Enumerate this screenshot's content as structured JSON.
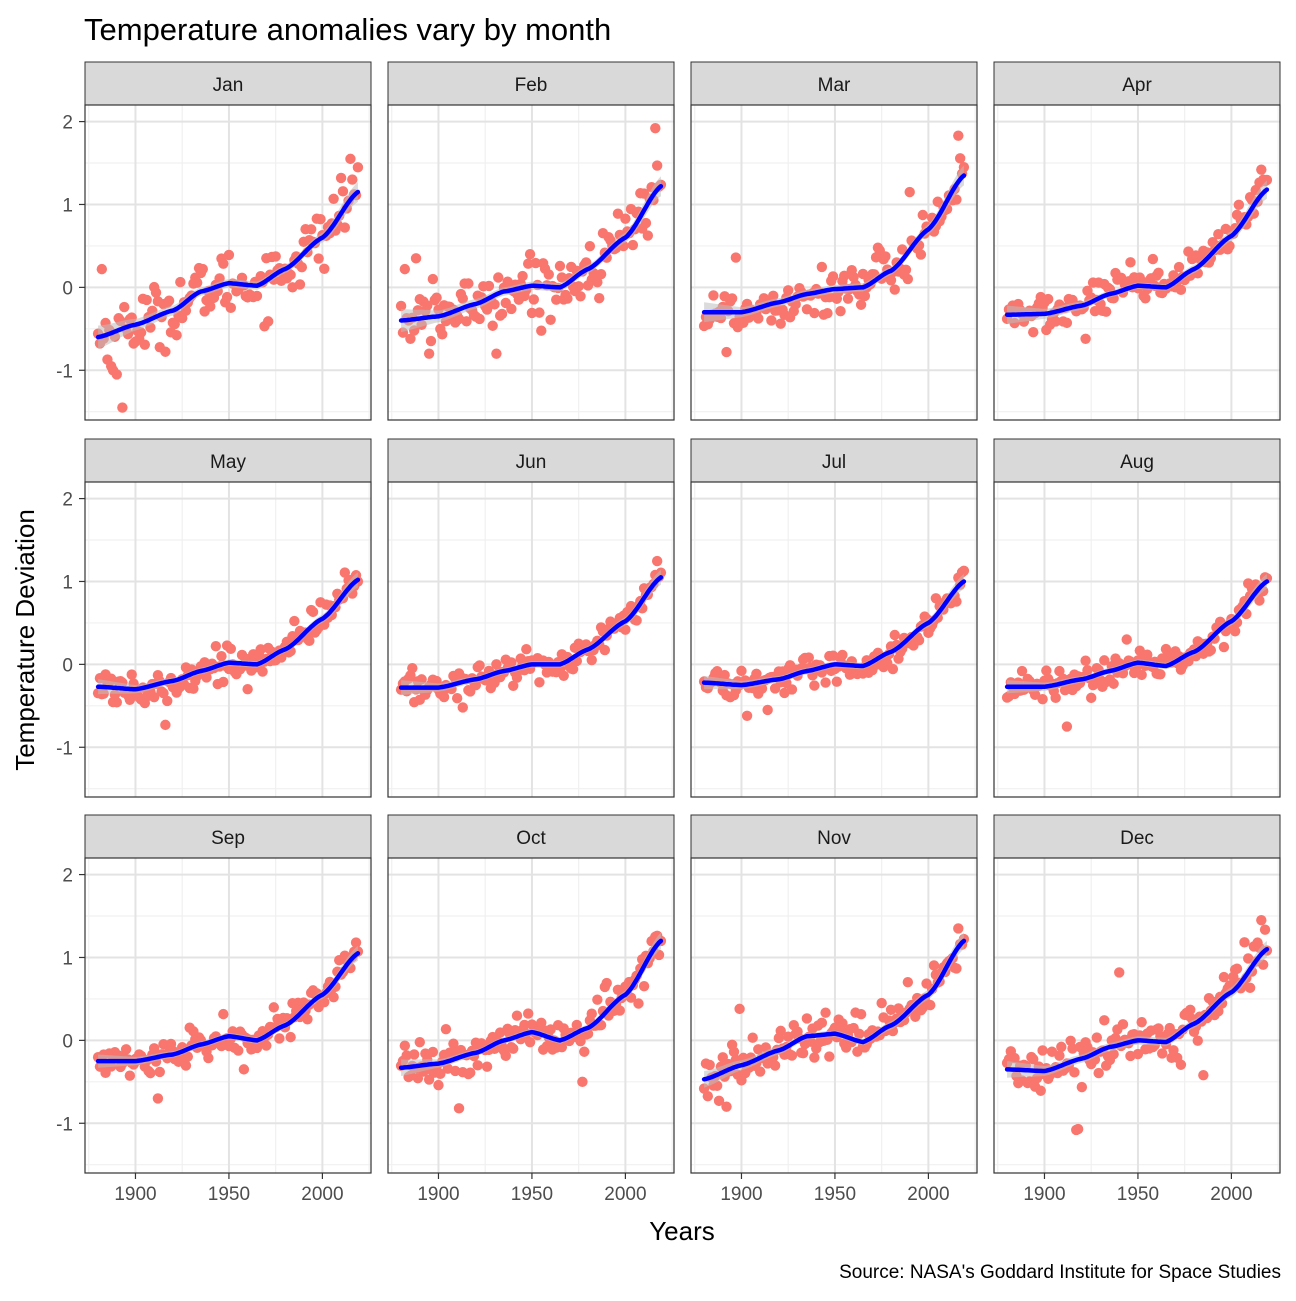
{
  "chart_data": {
    "type": "scatter",
    "title": "Temperature anomalies vary by month",
    "xlabel": "Years",
    "ylabel": "Temperature Deviation",
    "caption": "Source: NASA's Goddard Institute for Space Studies",
    "xlim": [
      1873,
      2026
    ],
    "ylim": [
      -1.6,
      2.2
    ],
    "x_ticks": [
      1900,
      1950,
      2000
    ],
    "y_ticks": [
      -1,
      0,
      1,
      2
    ],
    "grid": true,
    "point_color": "#F8766D",
    "smooth_color": "#0000FF",
    "band_color": "#BEBEBE",
    "strip_fill": "#D9D9D9",
    "series": [
      {
        "name": "Jan",
        "smooth": [
          [
            1880,
            -0.6
          ],
          [
            1900,
            -0.45
          ],
          [
            1920,
            -0.28
          ],
          [
            1935,
            -0.05
          ],
          [
            1950,
            0.05
          ],
          [
            1965,
            0.02
          ],
          [
            1980,
            0.22
          ],
          [
            2000,
            0.6
          ],
          [
            2019,
            1.15
          ]
        ],
        "band": [
          0.14,
          0.07,
          0.06,
          0.05,
          0.05,
          0.05,
          0.05,
          0.06,
          0.12
        ],
        "outliers": [
          [
            1882,
            0.22
          ],
          [
            1888,
            -1.0
          ],
          [
            1890,
            -1.05
          ],
          [
            1893,
            -1.45
          ],
          [
            2015,
            1.55
          ],
          [
            2016,
            1.3
          ],
          [
            2010,
            1.32
          ]
        ]
      },
      {
        "name": "Feb",
        "smooth": [
          [
            1880,
            -0.4
          ],
          [
            1900,
            -0.35
          ],
          [
            1920,
            -0.2
          ],
          [
            1935,
            -0.05
          ],
          [
            1950,
            0.02
          ],
          [
            1965,
            0.0
          ],
          [
            1980,
            0.22
          ],
          [
            2000,
            0.6
          ],
          [
            2019,
            1.22
          ]
        ],
        "band": [
          0.14,
          0.07,
          0.06,
          0.05,
          0.05,
          0.05,
          0.05,
          0.06,
          0.12
        ],
        "outliers": [
          [
            1882,
            0.22
          ],
          [
            1888,
            0.35
          ],
          [
            1895,
            -0.8
          ],
          [
            1931,
            -0.8
          ],
          [
            2016,
            1.92
          ],
          [
            2017,
            1.47
          ]
        ]
      },
      {
        "name": "Mar",
        "smooth": [
          [
            1880,
            -0.3
          ],
          [
            1900,
            -0.3
          ],
          [
            1920,
            -0.18
          ],
          [
            1935,
            -0.08
          ],
          [
            1950,
            -0.02
          ],
          [
            1965,
            0.0
          ],
          [
            1980,
            0.2
          ],
          [
            2000,
            0.7
          ],
          [
            2019,
            1.35
          ]
        ],
        "band": [
          0.12,
          0.06,
          0.05,
          0.05,
          0.05,
          0.05,
          0.05,
          0.06,
          0.12
        ],
        "outliers": [
          [
            1892,
            -0.78
          ],
          [
            1897,
            0.36
          ],
          [
            1990,
            1.15
          ],
          [
            2016,
            1.83
          ],
          [
            2019,
            1.45
          ]
        ]
      },
      {
        "name": "Apr",
        "smooth": [
          [
            1880,
            -0.33
          ],
          [
            1900,
            -0.32
          ],
          [
            1920,
            -0.22
          ],
          [
            1935,
            -0.08
          ],
          [
            1950,
            0.02
          ],
          [
            1965,
            0.0
          ],
          [
            1980,
            0.22
          ],
          [
            2000,
            0.62
          ],
          [
            2019,
            1.18
          ]
        ],
        "band": [
          0.11,
          0.06,
          0.05,
          0.04,
          0.04,
          0.04,
          0.05,
          0.06,
          0.11
        ],
        "outliers": [
          [
            1880,
            -0.38
          ],
          [
            1922,
            -0.62
          ],
          [
            2016,
            1.42
          ]
        ]
      },
      {
        "name": "May",
        "smooth": [
          [
            1880,
            -0.27
          ],
          [
            1900,
            -0.3
          ],
          [
            1920,
            -0.2
          ],
          [
            1935,
            -0.08
          ],
          [
            1950,
            0.02
          ],
          [
            1965,
            0.0
          ],
          [
            1980,
            0.18
          ],
          [
            2000,
            0.55
          ],
          [
            2019,
            1.02
          ]
        ],
        "band": [
          0.09,
          0.05,
          0.04,
          0.04,
          0.04,
          0.04,
          0.04,
          0.05,
          0.09
        ],
        "outliers": [
          [
            1916,
            -0.73
          ],
          [
            1960,
            -0.3
          ]
        ]
      },
      {
        "name": "Jun",
        "smooth": [
          [
            1880,
            -0.28
          ],
          [
            1900,
            -0.28
          ],
          [
            1920,
            -0.18
          ],
          [
            1935,
            -0.08
          ],
          [
            1950,
            0.0
          ],
          [
            1965,
            0.0
          ],
          [
            1980,
            0.18
          ],
          [
            2000,
            0.52
          ],
          [
            2019,
            1.05
          ]
        ],
        "band": [
          0.09,
          0.05,
          0.04,
          0.04,
          0.04,
          0.04,
          0.04,
          0.05,
          0.09
        ],
        "outliers": [
          [
            1913,
            -0.52
          ]
        ]
      },
      {
        "name": "Jul",
        "smooth": [
          [
            1880,
            -0.22
          ],
          [
            1900,
            -0.25
          ],
          [
            1920,
            -0.18
          ],
          [
            1935,
            -0.08
          ],
          [
            1950,
            0.0
          ],
          [
            1965,
            -0.02
          ],
          [
            1980,
            0.15
          ],
          [
            2000,
            0.5
          ],
          [
            2019,
            1.0
          ]
        ],
        "band": [
          0.08,
          0.05,
          0.04,
          0.04,
          0.04,
          0.04,
          0.04,
          0.05,
          0.09
        ],
        "outliers": [
          [
            1903,
            -0.62
          ],
          [
            1914,
            -0.55
          ]
        ]
      },
      {
        "name": "Aug",
        "smooth": [
          [
            1880,
            -0.27
          ],
          [
            1900,
            -0.27
          ],
          [
            1920,
            -0.18
          ],
          [
            1935,
            -0.08
          ],
          [
            1950,
            0.02
          ],
          [
            1965,
            -0.02
          ],
          [
            1980,
            0.15
          ],
          [
            2000,
            0.52
          ],
          [
            2019,
            1.0
          ]
        ],
        "band": [
          0.08,
          0.05,
          0.04,
          0.04,
          0.04,
          0.04,
          0.04,
          0.05,
          0.09
        ],
        "outliers": [
          [
            1912,
            -0.75
          ],
          [
            1944,
            0.3
          ]
        ]
      },
      {
        "name": "Sep",
        "smooth": [
          [
            1880,
            -0.25
          ],
          [
            1900,
            -0.25
          ],
          [
            1920,
            -0.17
          ],
          [
            1935,
            -0.05
          ],
          [
            1950,
            0.05
          ],
          [
            1965,
            0.0
          ],
          [
            1980,
            0.18
          ],
          [
            2000,
            0.55
          ],
          [
            2019,
            1.05
          ]
        ],
        "band": [
          0.08,
          0.05,
          0.04,
          0.04,
          0.04,
          0.04,
          0.04,
          0.05,
          0.09
        ],
        "outliers": [
          [
            1912,
            -0.7
          ],
          [
            1958,
            -0.35
          ],
          [
            2018,
            1.18
          ]
        ]
      },
      {
        "name": "Oct",
        "smooth": [
          [
            1880,
            -0.33
          ],
          [
            1900,
            -0.28
          ],
          [
            1920,
            -0.15
          ],
          [
            1935,
            0.0
          ],
          [
            1950,
            0.1
          ],
          [
            1965,
            0.0
          ],
          [
            1980,
            0.15
          ],
          [
            2000,
            0.55
          ],
          [
            2019,
            1.2
          ]
        ],
        "band": [
          0.1,
          0.05,
          0.04,
          0.04,
          0.04,
          0.04,
          0.04,
          0.05,
          0.1
        ],
        "outliers": [
          [
            1911,
            -0.82
          ],
          [
            1977,
            -0.5
          ],
          [
            2016,
            1.25
          ]
        ]
      },
      {
        "name": "Nov",
        "smooth": [
          [
            1880,
            -0.47
          ],
          [
            1900,
            -0.3
          ],
          [
            1920,
            -0.12
          ],
          [
            1935,
            0.05
          ],
          [
            1950,
            0.08
          ],
          [
            1965,
            -0.02
          ],
          [
            1980,
            0.18
          ],
          [
            2000,
            0.55
          ],
          [
            2019,
            1.2
          ]
        ],
        "band": [
          0.1,
          0.06,
          0.05,
          0.04,
          0.04,
          0.04,
          0.05,
          0.06,
          0.1
        ],
        "outliers": [
          [
            1892,
            -0.8
          ],
          [
            1899,
            0.38
          ],
          [
            1975,
            0.45
          ],
          [
            2016,
            1.35
          ]
        ]
      },
      {
        "name": "Dec",
        "smooth": [
          [
            1880,
            -0.35
          ],
          [
            1900,
            -0.37
          ],
          [
            1920,
            -0.22
          ],
          [
            1935,
            -0.08
          ],
          [
            1950,
            0.0
          ],
          [
            1965,
            -0.02
          ],
          [
            1980,
            0.2
          ],
          [
            2000,
            0.58
          ],
          [
            2019,
            1.1
          ]
        ],
        "band": [
          0.1,
          0.06,
          0.05,
          0.05,
          0.05,
          0.05,
          0.05,
          0.06,
          0.1
        ],
        "outliers": [
          [
            1917,
            -1.08
          ],
          [
            1918,
            -1.07
          ],
          [
            1940,
            0.82
          ],
          [
            1985,
            -0.42
          ],
          [
            2016,
            1.45
          ]
        ]
      }
    ]
  }
}
